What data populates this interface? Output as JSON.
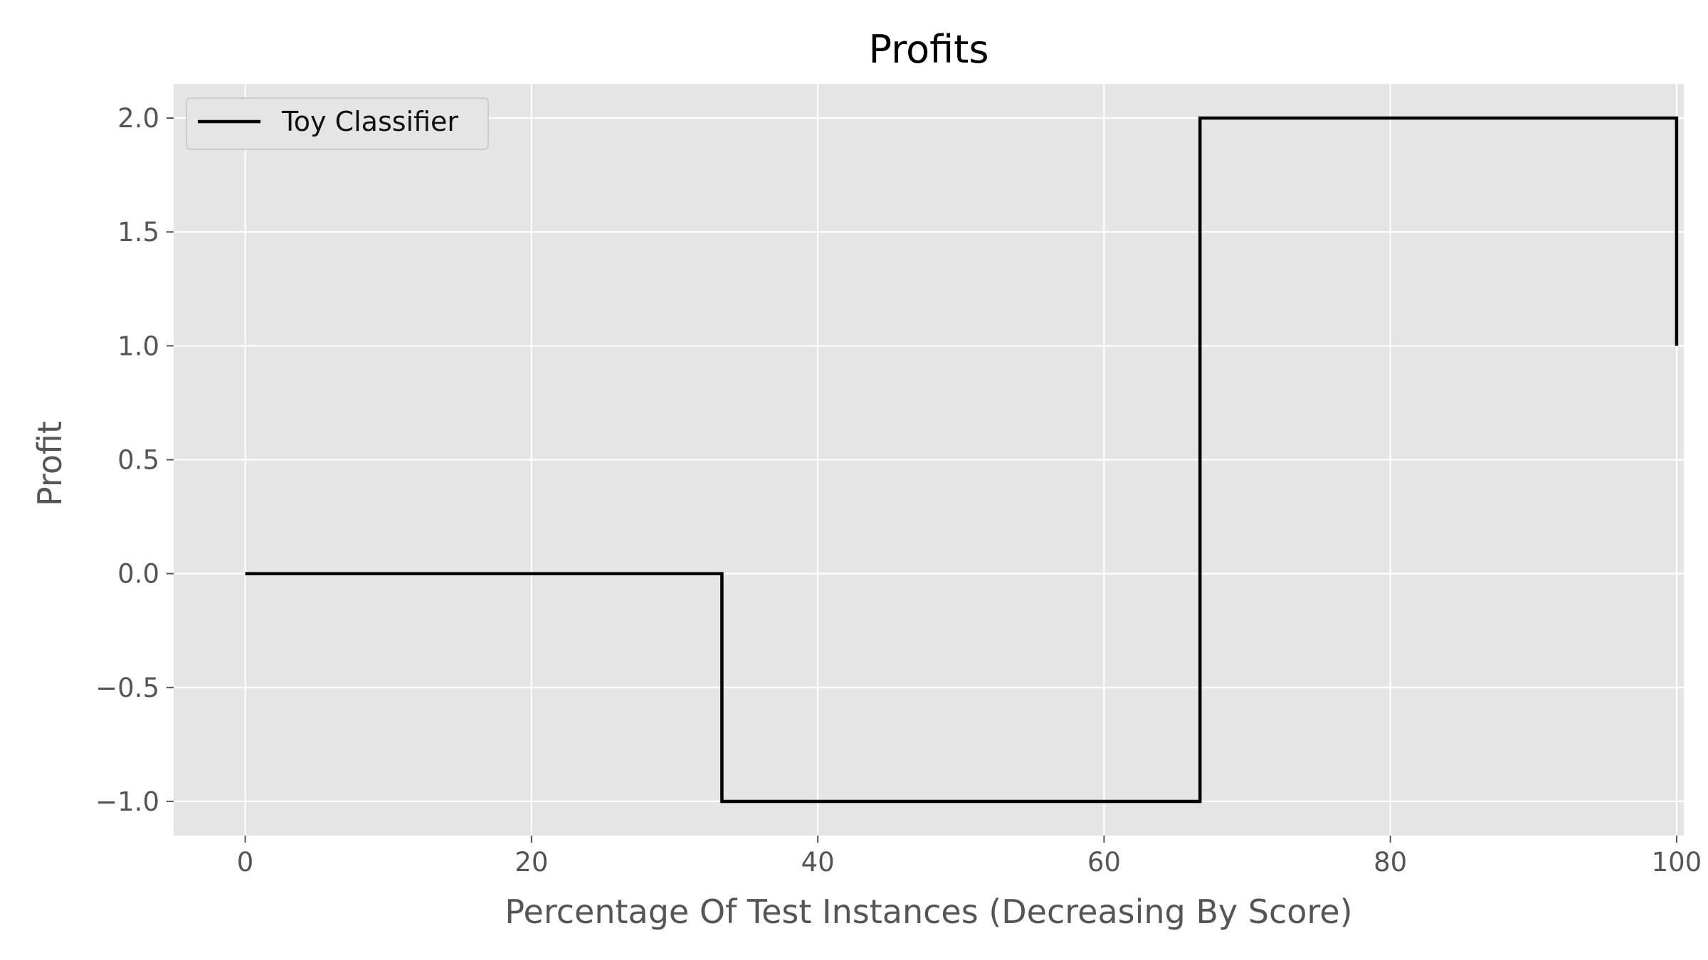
{
  "chart_data": {
    "type": "line",
    "title": "Profits",
    "xlabel": "Percentage Of Test Instances (Decreasing By Score)",
    "ylabel": "Profit",
    "xlim": [
      -5,
      100.5
    ],
    "ylim": [
      -1.15,
      2.15
    ],
    "x_ticks": [
      0,
      20,
      40,
      60,
      80,
      100
    ],
    "y_ticks": [
      -1.0,
      -0.5,
      0.0,
      0.5,
      1.0,
      1.5,
      2.0
    ],
    "x_tick_labels": [
      "0",
      "20",
      "40",
      "60",
      "80",
      "100"
    ],
    "y_tick_labels": [
      "−1.0",
      "−0.5",
      "0.0",
      "0.5",
      "1.0",
      "1.5",
      "2.0"
    ],
    "grid": true,
    "legend_position": "top-left",
    "series": [
      {
        "name": "Toy Classifier",
        "color": "#000000",
        "step": "post",
        "x": [
          0,
          33.3,
          33.3,
          66.7,
          66.7,
          100,
          100
        ],
        "y": [
          0,
          0,
          -1,
          -1,
          2,
          2,
          1
        ]
      }
    ],
    "colors": {
      "plot_background": "#e5e5e5",
      "grid": "#ffffff",
      "line": "#000000"
    }
  }
}
